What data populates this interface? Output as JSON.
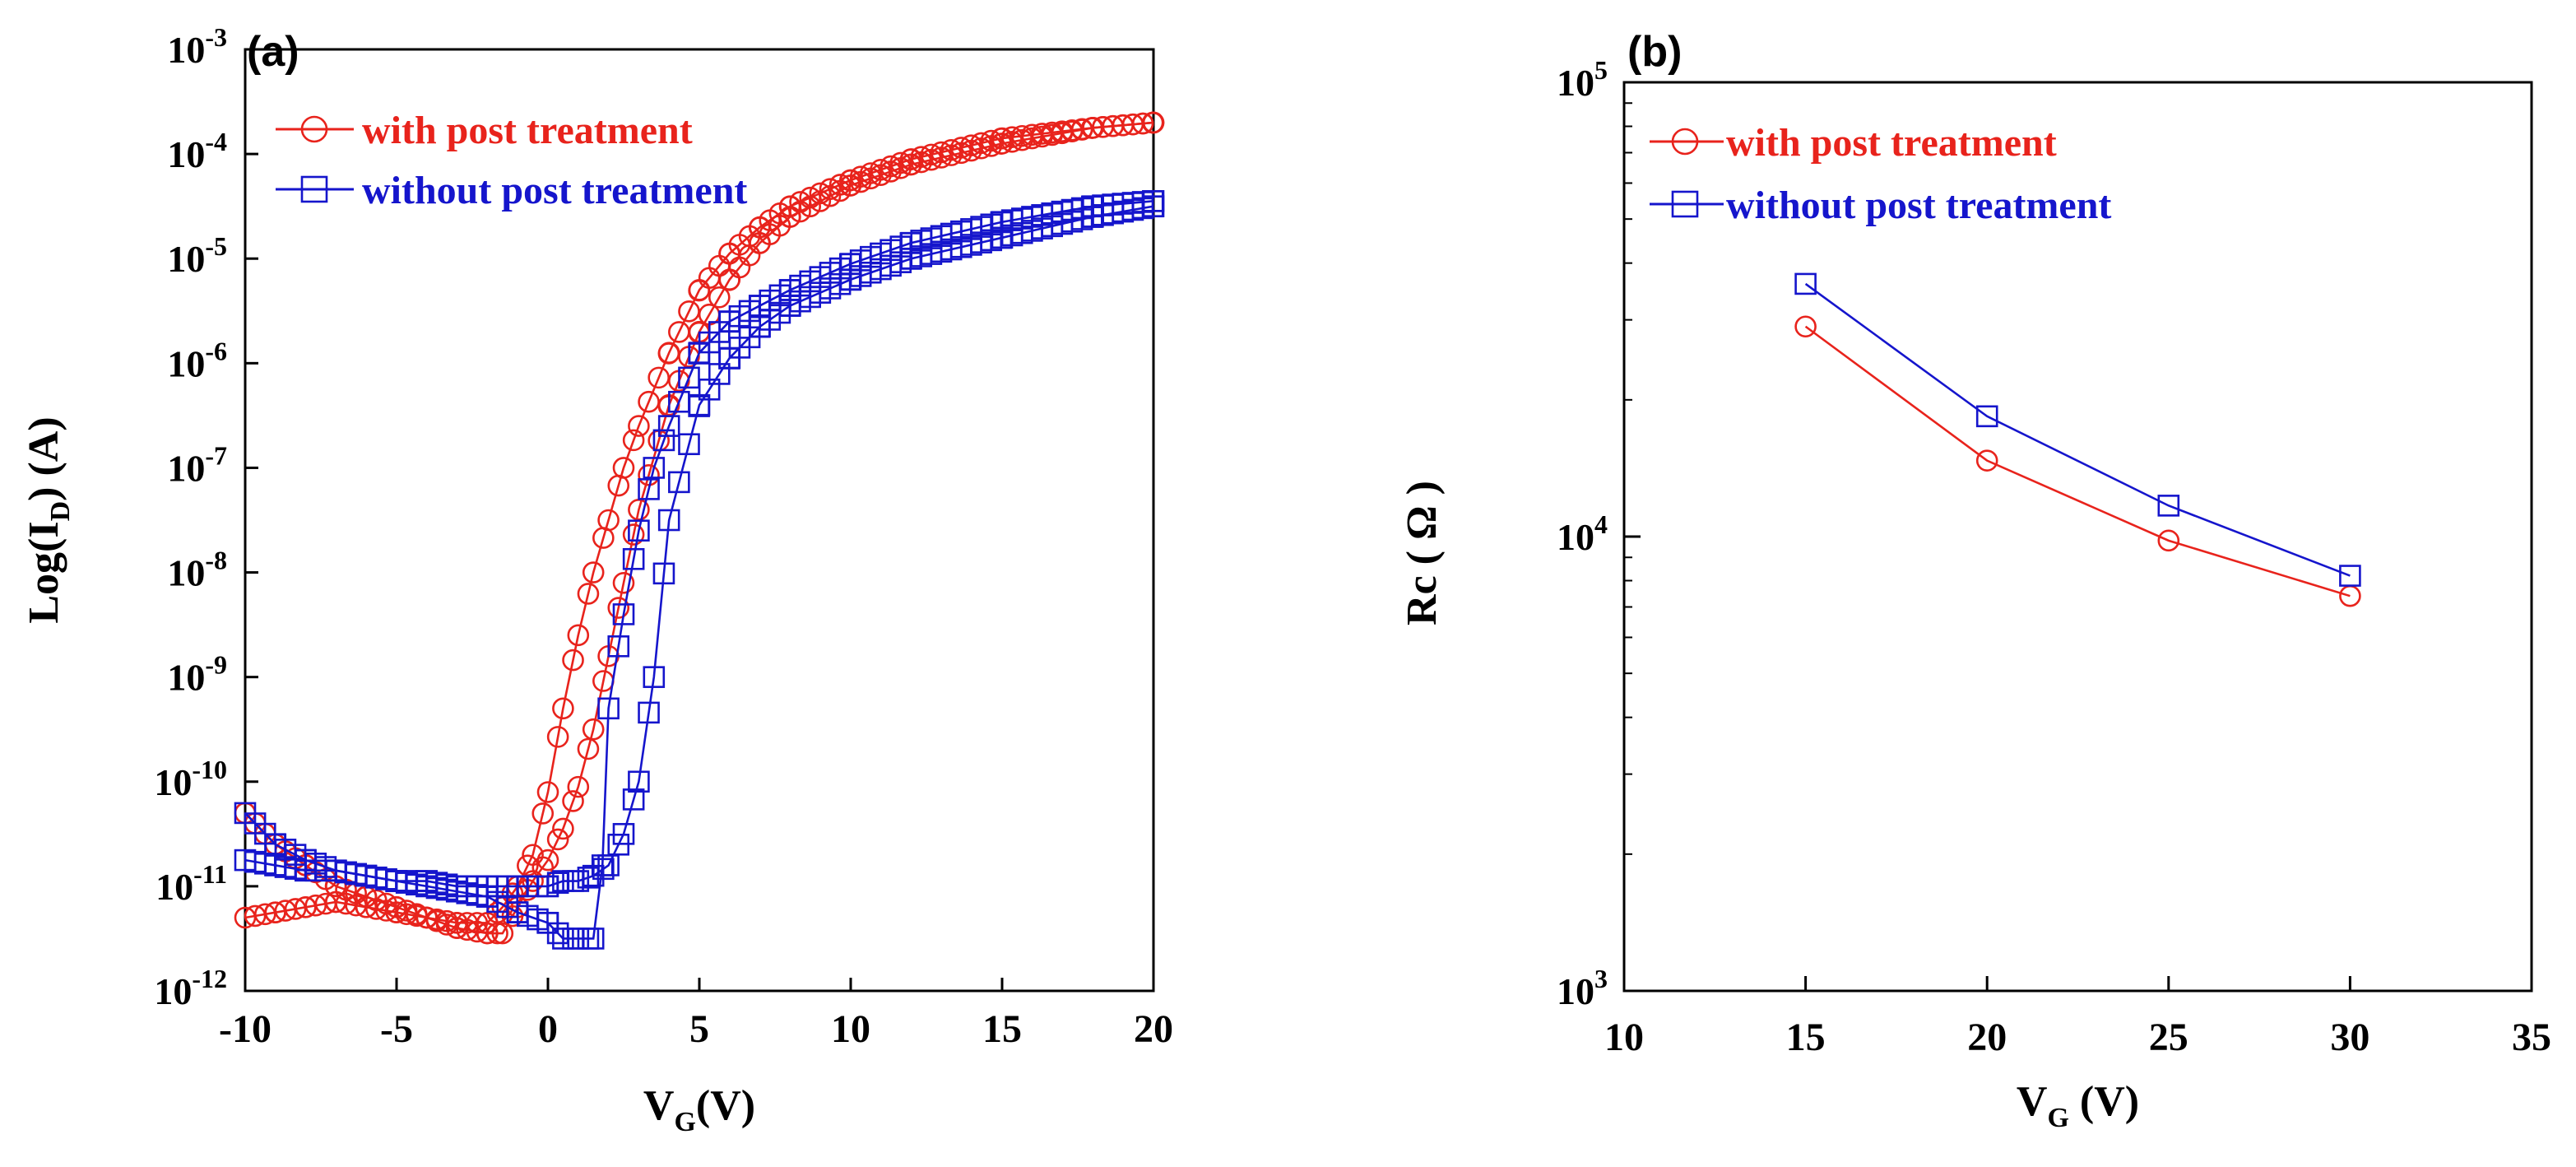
{
  "chart_data": [
    {
      "type": "scatter",
      "panel_label": "(a)",
      "xlabel": "V",
      "xlabel_sub": "G",
      "xlabel_suffix": "(V)",
      "ylabel": "Log(I",
      "ylabel_sub": "D",
      "ylabel_suffix": ") (A)",
      "xlim": [
        -10,
        20
      ],
      "ylim_log10": [
        -12,
        -3
      ],
      "x_ticks": [
        -10,
        -5,
        0,
        5,
        10,
        15,
        20
      ],
      "x_tick_labels": [
        "-10",
        "-5",
        "0",
        "5",
        "10",
        "15",
        "20"
      ],
      "y_ticks_exp": [
        -3,
        -4,
        -5,
        -6,
        -7,
        -8,
        -9,
        -10,
        -11,
        -12
      ],
      "y_tick_labels": [
        "10-3",
        "10-4",
        "10-5",
        "10-6",
        "10-7",
        "10-8",
        "10-9",
        "10-10",
        "10-11",
        "10-12"
      ],
      "legend_position": "top-left",
      "series": [
        {
          "name": "with post treatment",
          "color": "#e8231c",
          "marker": "circle",
          "sweeps": [
            {
              "x": [
                -10,
                -9,
                -8,
                -7,
                -6,
                -5,
                -4,
                -3,
                -2,
                -1.5,
                -1,
                -0.5,
                0,
                0.5,
                1,
                1.5,
                2,
                2.5,
                3,
                4,
                5,
                6,
                7,
                8,
                10,
                12,
                15,
                18,
                20
              ],
              "log_y": [
                -11.3,
                -11.25,
                -11.2,
                -11.15,
                -11.2,
                -11.25,
                -11.3,
                -11.35,
                -11.35,
                -11.2,
                -11,
                -10.7,
                -10.1,
                -9.3,
                -8.6,
                -8.0,
                -7.5,
                -7.0,
                -6.6,
                -5.9,
                -5.3,
                -4.95,
                -4.7,
                -4.5,
                -4.25,
                -4.05,
                -3.85,
                -3.75,
                -3.7
              ]
            },
            {
              "x": [
                -10,
                -9,
                -8,
                -7,
                -6,
                -5,
                -4,
                -3,
                -2,
                -1.5,
                -1,
                -0.5,
                0,
                0.5,
                1,
                1.5,
                2,
                2.5,
                3,
                4,
                5,
                6,
                7,
                8,
                10,
                12,
                15,
                18,
                20
              ],
              "log_y": [
                -10.3,
                -10.6,
                -10.8,
                -11.0,
                -11.1,
                -11.2,
                -11.3,
                -11.4,
                -11.45,
                -11.45,
                -11.2,
                -10.95,
                -10.75,
                -10.45,
                -10.05,
                -9.5,
                -8.8,
                -8.1,
                -7.4,
                -6.4,
                -5.7,
                -5.2,
                -4.85,
                -4.6,
                -4.3,
                -4.1,
                -3.9,
                -3.75,
                -3.7
              ]
            }
          ]
        },
        {
          "name": "without post treatment",
          "color": "#1515cc",
          "marker": "square",
          "sweeps": [
            {
              "x": [
                -10,
                -9,
                -8,
                -7,
                -6,
                -5,
                -4,
                -3,
                -2,
                -1,
                0,
                0.5,
                1,
                1.5,
                2,
                2.5,
                3,
                3.5,
                4,
                5,
                6,
                7,
                8,
                10,
                12,
                15,
                18,
                20
              ],
              "log_y": [
                -10.75,
                -10.8,
                -10.85,
                -10.85,
                -10.9,
                -10.95,
                -10.95,
                -11.0,
                -11.0,
                -11.0,
                -11.0,
                -10.95,
                -10.95,
                -10.9,
                -10.8,
                -10.5,
                -10.0,
                -9.0,
                -7.5,
                -6.4,
                -5.95,
                -5.65,
                -5.45,
                -5.2,
                -5.0,
                -4.8,
                -4.6,
                -4.5
              ]
            },
            {
              "x": [
                -10,
                -9,
                -8,
                -7,
                -6,
                -5,
                -4,
                -3,
                -2,
                -1,
                0,
                0.5,
                1,
                1.5,
                1.8,
                2,
                2.5,
                3,
                3.5,
                4,
                5,
                6,
                7,
                8,
                10,
                12,
                15,
                18,
                20
              ],
              "log_y": [
                -10.3,
                -10.6,
                -10.75,
                -10.85,
                -10.9,
                -10.95,
                -11.0,
                -11.05,
                -11.1,
                -11.25,
                -11.35,
                -11.5,
                -11.5,
                -11.5,
                -10.8,
                -9.3,
                -8.4,
                -7.6,
                -7.0,
                -6.6,
                -5.9,
                -5.6,
                -5.45,
                -5.3,
                -5.05,
                -4.85,
                -4.65,
                -4.5,
                -4.45
              ]
            }
          ]
        }
      ]
    },
    {
      "type": "line",
      "panel_label": "(b)",
      "xlabel": "V",
      "xlabel_sub": "G",
      "xlabel_suffix": " (V)",
      "ylabel": "Rc ( Ω )",
      "xlim": [
        10,
        35
      ],
      "ylim_log10": [
        3,
        5
      ],
      "x_ticks": [
        10,
        15,
        20,
        25,
        30,
        35
      ],
      "x_tick_labels": [
        "10",
        "15",
        "20",
        "25",
        "30",
        "35"
      ],
      "y_ticks_exp": [
        5,
        4,
        3
      ],
      "y_tick_labels": [
        "105",
        "104",
        "103"
      ],
      "legend_position": "top-left",
      "x": [
        15,
        20,
        25,
        30
      ],
      "series": [
        {
          "name": "with post treatment",
          "color": "#e8231c",
          "marker": "circle",
          "values": [
            29000,
            14700,
            9800,
            7400
          ]
        },
        {
          "name": "without post treatment",
          "color": "#1515cc",
          "marker": "square",
          "values": [
            36000,
            18400,
            11700,
            8200
          ]
        }
      ]
    }
  ]
}
